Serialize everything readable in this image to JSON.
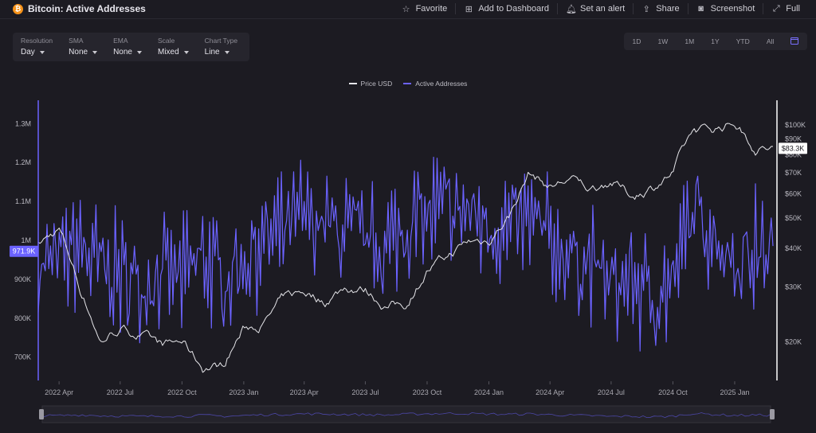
{
  "header": {
    "coin_symbol": "₿",
    "title": "Bitcoin: Active Addresses",
    "actions": [
      {
        "label": "Favorite",
        "icon": "star-icon",
        "glyph": "☆"
      },
      {
        "label": "Add to Dashboard",
        "icon": "dashboard-add-icon",
        "glyph": "⊞"
      },
      {
        "label": "Set an alert",
        "icon": "bell-icon",
        "glyph": "🔔︎"
      },
      {
        "label": "Share",
        "icon": "share-icon",
        "glyph": "⇪"
      },
      {
        "label": "Screenshot",
        "icon": "camera-icon",
        "glyph": "◙"
      },
      {
        "label": "Full",
        "icon": "fullscreen-icon",
        "glyph": "⤢"
      }
    ]
  },
  "controls": [
    {
      "label": "Resolution",
      "value": "Day"
    },
    {
      "label": "SMA",
      "value": "None"
    },
    {
      "label": "EMA",
      "value": "None"
    },
    {
      "label": "Scale",
      "value": "Mixed"
    },
    {
      "label": "Chart Type",
      "value": "Line"
    }
  ],
  "ranges": [
    "1D",
    "1W",
    "1M",
    "1Y",
    "YTD",
    "All"
  ],
  "colors": {
    "active_addresses": "#6b62ff",
    "price": "#e6e6ea",
    "background": "#1c1b22"
  },
  "chart_data": {
    "type": "line",
    "legend": [
      "Price USD",
      "Active Addresses"
    ],
    "legend_position": "top-center",
    "grid": false,
    "x_ticks": [
      "2022 Apr",
      "2022 Jul",
      "2022 Oct",
      "2023 Jan",
      "2023 Apr",
      "2023 Jul",
      "2023 Oct",
      "2024 Jan",
      "2024 Apr",
      "2024 Jul",
      "2024 Oct",
      "2025 Jan"
    ],
    "x_range": [
      "2022-03-01",
      "2025-02-27"
    ],
    "y_left": {
      "label": "Active Addresses",
      "ticks": [
        "1.3M",
        "1.2M",
        "1.1M",
        "1M",
        "900K",
        "800K",
        "700K"
      ],
      "range": [
        640000,
        1360000
      ],
      "current_label": "971.9K"
    },
    "y_right": {
      "label": "Price USD",
      "scale": "log",
      "ticks": [
        "$100K",
        "$90K",
        "$80K",
        "$70K",
        "$60K",
        "$50K",
        "$40K",
        "$30K",
        "$20K"
      ],
      "range": [
        15000,
        120000
      ],
      "current_label": "$83.3K"
    },
    "series": [
      {
        "name": "Active Addresses",
        "points": [
          [
            "2022-03",
            920000
          ],
          [
            "2022-04",
            950000
          ],
          [
            "2022-05",
            985000
          ],
          [
            "2022-06",
            930000
          ],
          [
            "2022-07",
            910000
          ],
          [
            "2022-08",
            890000
          ],
          [
            "2022-09",
            920000
          ],
          [
            "2022-10",
            900000
          ],
          [
            "2022-11",
            960000
          ],
          [
            "2022-12",
            900000
          ],
          [
            "2023-01",
            950000
          ],
          [
            "2023-02",
            1000000
          ],
          [
            "2023-03",
            1020000
          ],
          [
            "2023-04",
            1060000
          ],
          [
            "2023-05",
            1040000
          ],
          [
            "2023-06",
            1020000
          ],
          [
            "2023-07",
            1000000
          ],
          [
            "2023-08",
            980000
          ],
          [
            "2023-09",
            1040000
          ],
          [
            "2023-10",
            1060000
          ],
          [
            "2023-11",
            1080000
          ],
          [
            "2023-12",
            1070000
          ],
          [
            "2024-01",
            1040000
          ],
          [
            "2024-02",
            1020000
          ],
          [
            "2024-03",
            1050000
          ],
          [
            "2024-04",
            1000000
          ],
          [
            "2024-05",
            960000
          ],
          [
            "2024-06",
            940000
          ],
          [
            "2024-07",
            880000
          ],
          [
            "2024-08",
            900000
          ],
          [
            "2024-09",
            850000
          ],
          [
            "2024-10",
            890000
          ],
          [
            "2024-11",
            1080000
          ],
          [
            "2024-12",
            1020000
          ],
          [
            "2025-01",
            950000
          ],
          [
            "2025-02",
            972000
          ]
        ]
      },
      {
        "name": "Price USD",
        "points": [
          [
            "2022-03",
            41000
          ],
          [
            "2022-04",
            46000
          ],
          [
            "2022-05",
            30000
          ],
          [
            "2022-06",
            20000
          ],
          [
            "2022-07",
            22000
          ],
          [
            "2022-08",
            21000
          ],
          [
            "2022-09",
            19400
          ],
          [
            "2022-10",
            20000
          ],
          [
            "2022-11",
            16500
          ],
          [
            "2022-12",
            16800
          ],
          [
            "2023-01",
            22000
          ],
          [
            "2023-02",
            23000
          ],
          [
            "2023-03",
            27500
          ],
          [
            "2023-04",
            29000
          ],
          [
            "2023-05",
            27000
          ],
          [
            "2023-06",
            30000
          ],
          [
            "2023-07",
            29500
          ],
          [
            "2023-08",
            26000
          ],
          [
            "2023-09",
            26500
          ],
          [
            "2023-10",
            34000
          ],
          [
            "2023-11",
            37500
          ],
          [
            "2023-12",
            42000
          ],
          [
            "2024-01",
            42500
          ],
          [
            "2024-02",
            51000
          ],
          [
            "2024-03",
            70000
          ],
          [
            "2024-04",
            63000
          ],
          [
            "2024-05",
            67000
          ],
          [
            "2024-06",
            62000
          ],
          [
            "2024-07",
            66000
          ],
          [
            "2024-08",
            59000
          ],
          [
            "2024-09",
            63000
          ],
          [
            "2024-10",
            70000
          ],
          [
            "2024-11",
            96000
          ],
          [
            "2024-12",
            97000
          ],
          [
            "2025-01",
            102000
          ],
          [
            "2025-02",
            84000
          ]
        ]
      }
    ]
  }
}
